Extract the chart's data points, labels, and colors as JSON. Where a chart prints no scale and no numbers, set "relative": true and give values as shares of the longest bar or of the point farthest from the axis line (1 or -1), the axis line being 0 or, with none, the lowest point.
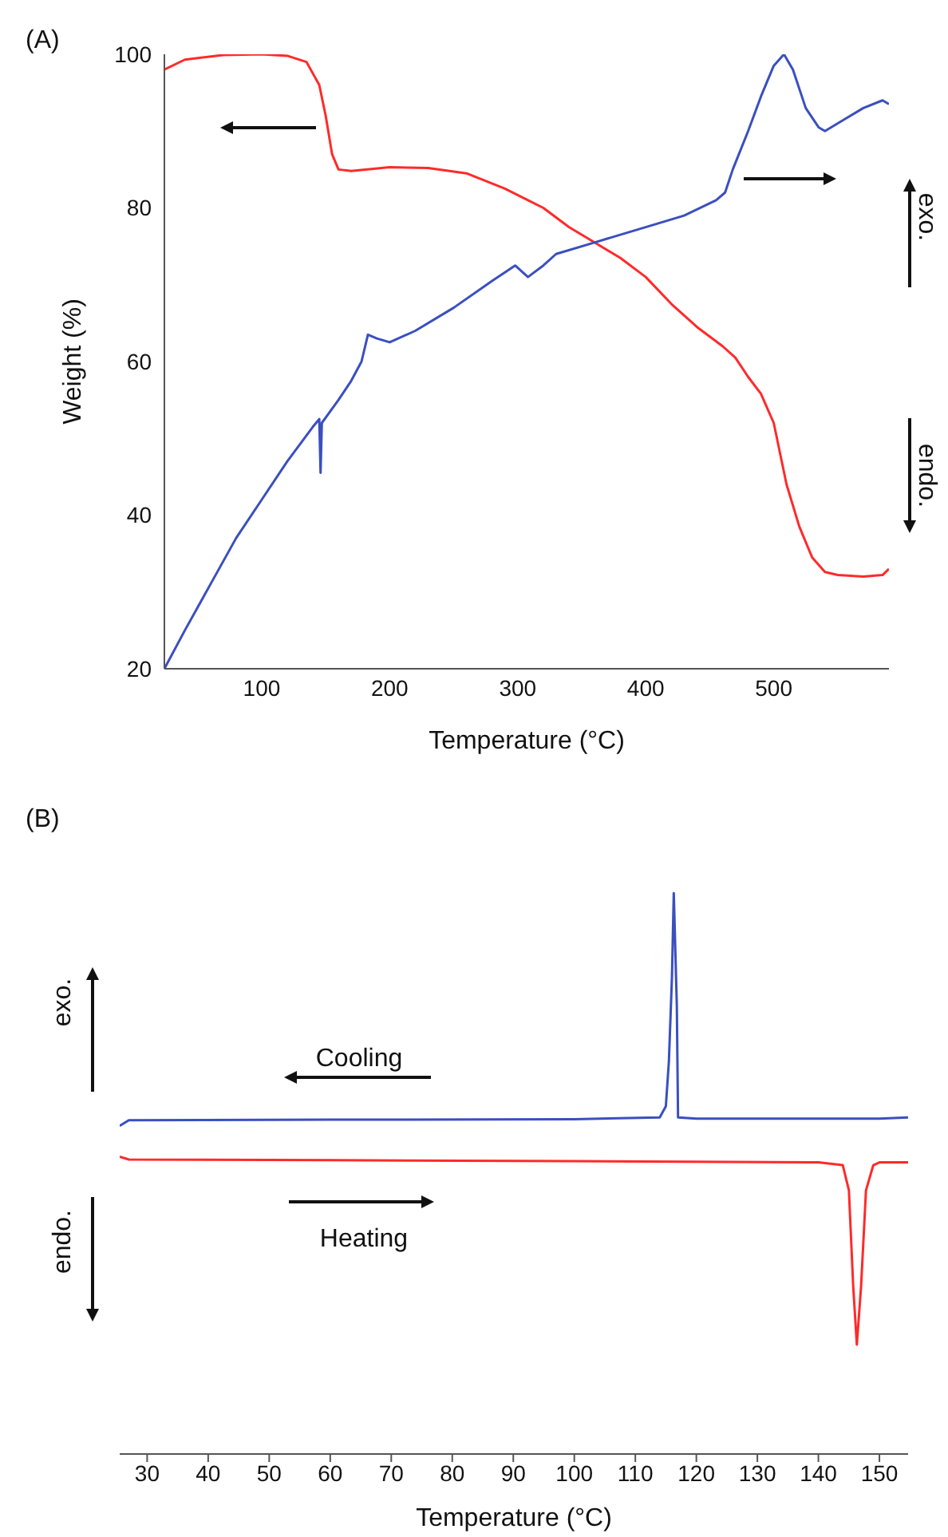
{
  "chart_data": [
    {
      "type": "line",
      "title": "(A)",
      "xlabel": "Temperature (°C)",
      "ylabel": "Weight (%)",
      "xlim": [
        24,
        590
      ],
      "xticks": [
        100,
        200,
        300,
        400,
        500
      ],
      "ylim": [
        20,
        100
      ],
      "yticks": [
        20,
        40,
        60,
        80,
        100
      ],
      "annotations": [
        "exo.",
        "endo."
      ],
      "series": [
        {
          "color": "#ff2a2a",
          "x": [
            24,
            40,
            70,
            100,
            120,
            135,
            145,
            150,
            155,
            160,
            170,
            200,
            230,
            260,
            290,
            320,
            340,
            360,
            380,
            400,
            420,
            440,
            460,
            470,
            480,
            490,
            500,
            510,
            520,
            530,
            540,
            550,
            570,
            585,
            590
          ],
          "values": [
            98,
            99.3,
            99.9,
            100,
            99.8,
            99,
            96,
            92,
            87,
            85,
            84.8,
            85.3,
            85.2,
            84.5,
            82.5,
            80,
            77.5,
            75.5,
            73.5,
            71,
            67.5,
            64.5,
            62,
            60.5,
            58,
            55.8,
            52,
            44,
            38.5,
            34.5,
            32.6,
            32.2,
            32,
            32.2,
            33
          ]
        },
        {
          "color": "#3a4fc0",
          "x": [
            24,
            40,
            60,
            80,
            100,
            120,
            140,
            145,
            146,
            147,
            160,
            170,
            178,
            183,
            190,
            200,
            220,
            250,
            280,
            298,
            308,
            320,
            330,
            360,
            400,
            430,
            455,
            462,
            468,
            480,
            490,
            500,
            508,
            515,
            525,
            535,
            540,
            555,
            570,
            585,
            590
          ],
          "values": [
            20,
            25,
            31,
            37,
            42,
            47,
            51.5,
            52.5,
            45.5,
            52,
            55,
            57.5,
            60,
            63.5,
            63,
            62.5,
            64,
            67,
            70.5,
            72.5,
            71,
            72.5,
            74,
            75.5,
            77.5,
            79,
            81,
            82,
            85,
            90,
            94.5,
            98.5,
            100,
            98,
            93,
            90.5,
            90,
            91.5,
            93,
            94,
            93.5
          ]
        }
      ]
    },
    {
      "type": "line",
      "title": "(B)",
      "xlabel": "Temperature (°C)",
      "xlim": [
        25.5,
        154.7
      ],
      "xticks": [
        30,
        40,
        50,
        60,
        70,
        80,
        90,
        100,
        110,
        120,
        130,
        140,
        150
      ],
      "relative": true,
      "tick_labels": "x",
      "annotations": [
        "exo.",
        "endo.",
        "Cooling",
        "Heating"
      ],
      "series": [
        {
          "color": "#3a4fc0",
          "x": [
            25.5,
            27,
            60,
            100,
            114,
            115,
            115.5,
            116,
            116.3,
            116.8,
            117,
            120,
            150,
            154.7
          ],
          "values": [
            0.585,
            0.595,
            0.596,
            0.597,
            0.6,
            0.62,
            0.7,
            0.85,
            1,
            0.8,
            0.6,
            0.598,
            0.598,
            0.6
          ]
        },
        {
          "color": "#ff2a2a",
          "x": [
            25.5,
            27,
            60,
            100,
            140,
            144,
            145,
            145.7,
            146.3,
            147,
            147.8,
            149,
            150,
            154.7
          ],
          "values": [
            0.53,
            0.525,
            0.524,
            0.522,
            0.52,
            0.515,
            0.47,
            0.3,
            0.195,
            0.3,
            0.47,
            0.515,
            0.52,
            0.52
          ]
        }
      ]
    }
  ]
}
